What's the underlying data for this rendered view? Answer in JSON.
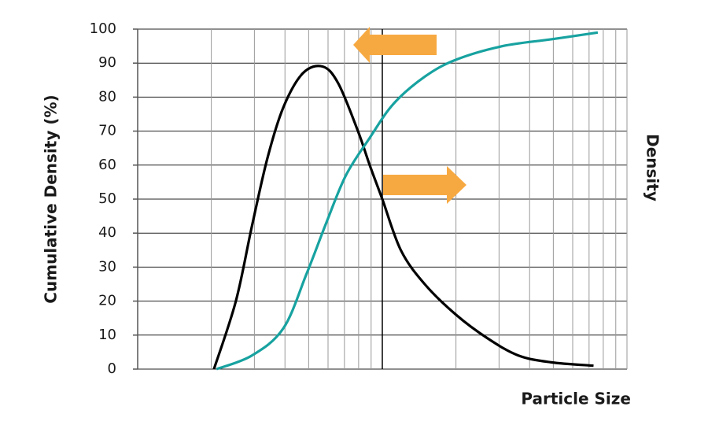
{
  "chart_data": {
    "type": "line",
    "y_label": "Cumulative Density (%)",
    "y2_label": "Density",
    "x_label": "Particle Size",
    "xscale": "log",
    "xlim": [
      0.1,
      10
    ],
    "xticks": [
      0.2,
      0.3,
      0.4,
      0.5,
      0.6,
      0.7,
      0.8,
      0.9,
      1,
      2,
      3,
      4,
      5,
      6,
      7,
      8,
      9,
      10
    ],
    "xtick_labels": false,
    "ylim": [
      0,
      100
    ],
    "yticks": [
      0,
      10,
      20,
      30,
      40,
      50,
      60,
      70,
      80,
      90,
      100
    ],
    "y2lim": [
      0,
      100
    ],
    "grid": true,
    "series": [
      {
        "color": "#000000",
        "axis": "y2",
        "x": [
          0.205,
          0.252,
          0.293,
          0.339,
          0.394,
          0.473,
          0.57,
          0.661,
          0.795,
          0.888,
          1.0,
          1.19,
          1.49,
          2.0,
          2.7,
          3.6,
          4.9,
          7.3
        ],
        "values": [
          0,
          20,
          42,
          62,
          77,
          87,
          89,
          84,
          70,
          60,
          50,
          35,
          25,
          16,
          9,
          4,
          2,
          1
        ]
      },
      {
        "color": "#17a2a0",
        "x": [
          0.21,
          0.293,
          0.394,
          0.49,
          0.59,
          0.71,
          0.888,
          1.11,
          1.49,
          2.0,
          3.1,
          4.9,
          7.6
        ],
        "values": [
          0,
          4,
          12,
          28,
          43,
          57,
          68,
          78,
          86,
          91,
          95,
          97,
          99
        ]
      }
    ]
  }
}
